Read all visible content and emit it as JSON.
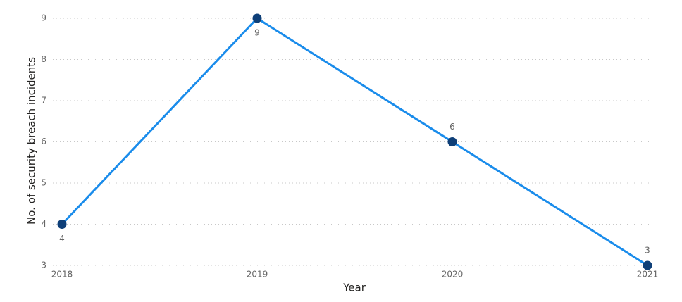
{
  "chart_data": {
    "type": "line",
    "x_label": "Year",
    "y_label": "No. of security breach incidents",
    "categories": [
      "2018",
      "2019",
      "2020",
      "2021"
    ],
    "series": [
      {
        "name": "No. of security breach incidents",
        "color": "#1a8ceb",
        "marker_color": "#0e3f78",
        "values": [
          4,
          9,
          6,
          3
        ]
      }
    ],
    "ylim": [
      3,
      9
    ],
    "yticks": [
      3,
      4,
      5,
      6,
      7,
      8,
      9
    ],
    "grid": true
  }
}
